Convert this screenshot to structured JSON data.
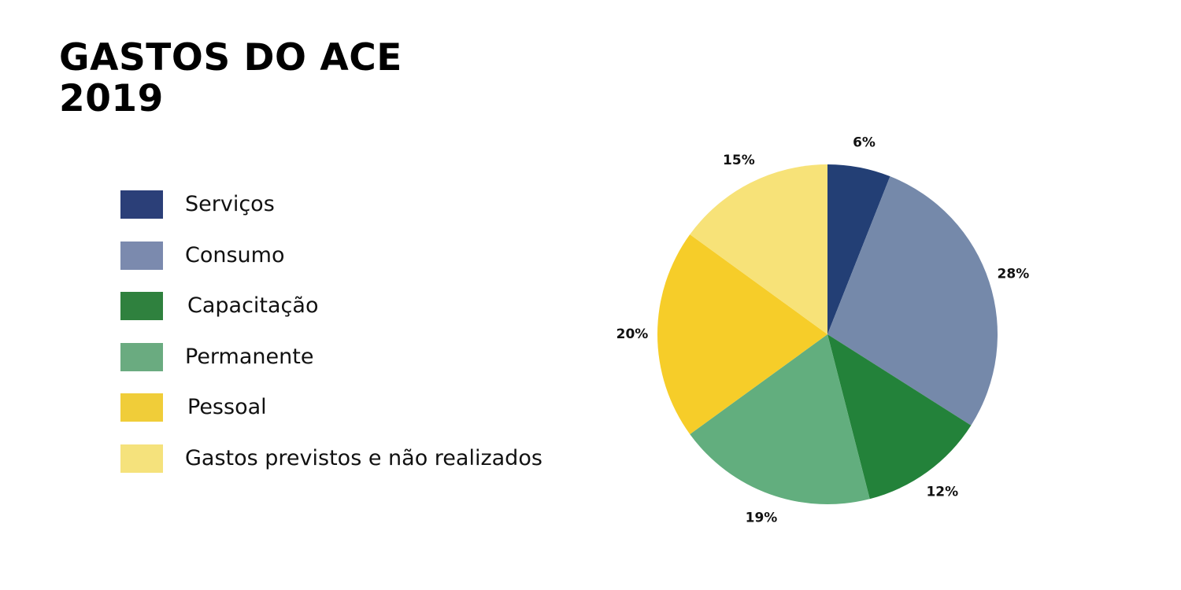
{
  "title": {
    "line1": "GASTOS DO ACE",
    "line2": "2019"
  },
  "chart_data": {
    "type": "pie",
    "title": "GASTOS DO ACE 2019",
    "legend_placement": "left",
    "start_angle": "top, clockwise",
    "slices": [
      {
        "label": "Serviços",
        "value": 6,
        "display": "6%",
        "color": "#233f75",
        "legend_color": "#2b3f78"
      },
      {
        "label": "Consumo",
        "value": 28,
        "display": "28%",
        "color": "#7589aa",
        "legend_color": "#7b8aae"
      },
      {
        "label": "Capacitação",
        "value": 12,
        "display": "12%",
        "color": "#23823a",
        "legend_color": "#2f813e"
      },
      {
        "label": "Permanente",
        "value": 19,
        "display": "19%",
        "color": "#62ae7e",
        "legend_color": "#6aab80"
      },
      {
        "label": "Pessoal",
        "value": 20,
        "display": "20%",
        "color": "#f6cd29",
        "legend_color": "#f0cd39"
      },
      {
        "label": "Gastos previstos e não realizados",
        "value": 15,
        "display": "15%",
        "color": "#f7e278",
        "legend_color": "#f5e27c"
      }
    ]
  }
}
